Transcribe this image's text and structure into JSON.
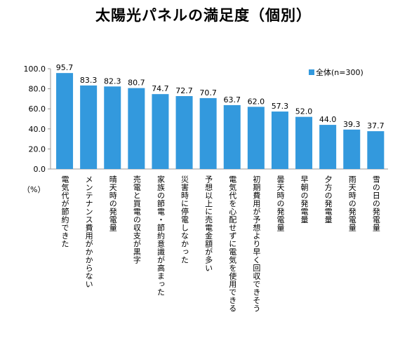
{
  "chart_data": {
    "type": "bar",
    "title": "太陽光パネルの満足度（個別）",
    "unit_label": "（%）",
    "ylim": [
      0,
      100
    ],
    "yticks": [
      "0.0",
      "20.0",
      "40.0",
      "60.0",
      "80.0",
      "100.0"
    ],
    "grid": false,
    "legend_position": "top-right",
    "bar_color": "#3399dd",
    "series": [
      {
        "name": "全体(n=300)",
        "values": [
          95.7,
          83.3,
          82.3,
          80.7,
          74.7,
          72.7,
          70.7,
          63.7,
          62.0,
          57.3,
          52.0,
          44.0,
          39.3,
          37.7
        ]
      }
    ],
    "value_labels": [
      "95.7",
      "83.3",
      "82.3",
      "80.7",
      "74.7",
      "72.7",
      "70.7",
      "63.7",
      "62.0",
      "57.3",
      "52.0",
      "44.0",
      "39.3",
      "37.7"
    ],
    "categories": [
      "電気代が節約できた",
      "メンテナンス費用がかからない",
      "晴天時の発電量",
      "売電と買電の収支が黒字",
      "家族の節電・節約意識が高まった",
      "災害時に停電しなかった",
      "予想以上に売電金額が多い",
      "電気代を心配せずに電気を使用できる",
      "初期費用が予想より早く回収できそう",
      "曇天時の発電量",
      "早朝の発電量",
      "夕方の発電量",
      "雨天時の発電量",
      "雪の日の発電量"
    ]
  }
}
